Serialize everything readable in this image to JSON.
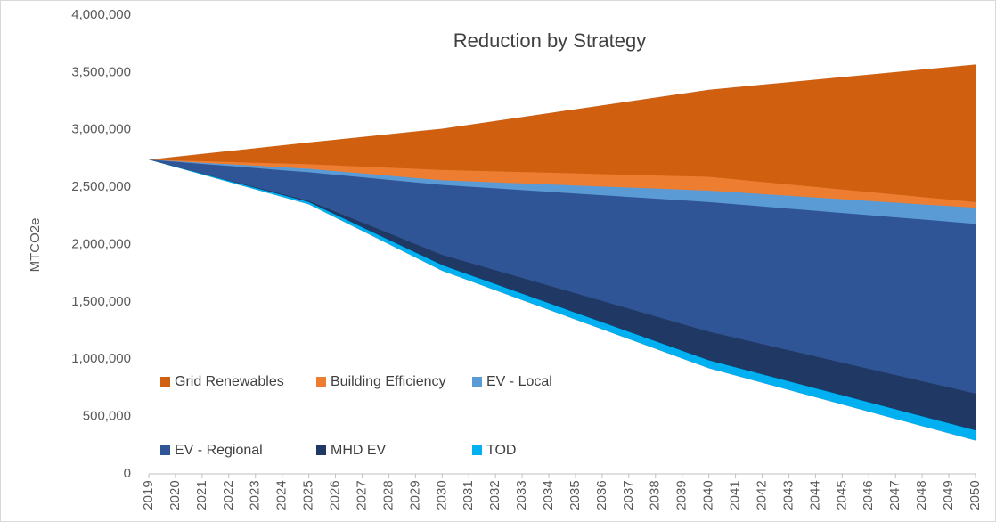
{
  "chart_data": {
    "type": "area",
    "title": "Reduction by Strategy",
    "y_label": "MTCO2e",
    "categories": [
      "2019",
      "2020",
      "2021",
      "2022",
      "2023",
      "2024",
      "2025",
      "2026",
      "2027",
      "2028",
      "2029",
      "2030",
      "2031",
      "2032",
      "2033",
      "2034",
      "2035",
      "2036",
      "2037",
      "2038",
      "2039",
      "2040",
      "2041",
      "2042",
      "2043",
      "2044",
      "2045",
      "2046",
      "2047",
      "2048",
      "2049",
      "2050"
    ],
    "ylim": [
      0,
      4000000
    ],
    "yticks": [
      0,
      {
        "value": 500000,
        "label": "500,000"
      },
      {
        "value": 1000000,
        "label": "1,000,000"
      },
      {
        "value": 1500000,
        "label": "1,500,000"
      },
      {
        "value": 2000000,
        "label": "2,000,000"
      },
      {
        "value": 2500000,
        "label": "2,500,000"
      },
      {
        "value": 3000000,
        "label": "3,000,000"
      },
      {
        "value": 3500000,
        "label": "3,500,000"
      },
      {
        "value": 4000000,
        "label": "4,000,000"
      }
    ],
    "legend": "lower left",
    "series": [
      {
        "name": "Grid Renewables",
        "color": "#d0600f",
        "values": [
          2740000,
          2765000,
          2790000,
          2815000,
          2840000,
          2865000,
          2890000,
          2914000,
          2938000,
          2962000,
          2986000,
          3010000,
          3044000,
          3078000,
          3112000,
          3146000,
          3180000,
          3214000,
          3248000,
          3282000,
          3316000,
          3350000,
          3372000,
          3394000,
          3416000,
          3438000,
          3460000,
          3482000,
          3504000,
          3526000,
          3548000,
          3570000
        ]
      },
      {
        "name": "Building Efficiency",
        "color": "#ed7d31",
        "values": [
          2740000,
          2733000,
          2727000,
          2720000,
          2713000,
          2707000,
          2700000,
          2690000,
          2680000,
          2670000,
          2660000,
          2650000,
          2644000,
          2638000,
          2632000,
          2626000,
          2620000,
          2614000,
          2608000,
          2602000,
          2596000,
          2590000,
          2568000,
          2546000,
          2524000,
          2502000,
          2480000,
          2458000,
          2436000,
          2414000,
          2392000,
          2370000
        ]
      },
      {
        "name": "EV - Local",
        "color": "#5b9bd5",
        "values": [
          2740000,
          2727000,
          2713000,
          2700000,
          2687000,
          2673000,
          2660000,
          2640000,
          2620000,
          2600000,
          2580000,
          2560000,
          2551000,
          2542000,
          2533000,
          2524000,
          2515000,
          2506000,
          2497000,
          2488000,
          2479000,
          2470000,
          2455000,
          2440000,
          2425000,
          2410000,
          2395000,
          2380000,
          2365000,
          2350000,
          2335000,
          2320000
        ]
      },
      {
        "name": "EV - Regional",
        "color": "#2f5597",
        "values": [
          2740000,
          2722000,
          2703000,
          2685000,
          2667000,
          2648000,
          2630000,
          2608000,
          2586000,
          2564000,
          2542000,
          2520000,
          2505000,
          2490000,
          2475000,
          2460000,
          2445000,
          2430000,
          2415000,
          2400000,
          2385000,
          2370000,
          2351000,
          2332000,
          2313000,
          2294000,
          2275000,
          2256000,
          2237000,
          2218000,
          2199000,
          2180000
        ]
      },
      {
        "name": "MHD EV",
        "color": "#203864",
        "values": [
          2740000,
          2680000,
          2620000,
          2560000,
          2500000,
          2440000,
          2380000,
          2286000,
          2192000,
          2098000,
          2004000,
          1910000,
          1843000,
          1776000,
          1709000,
          1642000,
          1575000,
          1508000,
          1441000,
          1374000,
          1307000,
          1240000,
          1186000,
          1132000,
          1078000,
          1024000,
          970000,
          916000,
          862000,
          808000,
          754000,
          700000
        ]
      },
      {
        "name": "TOD",
        "color": "#00b0f0",
        "values": [
          2740000,
          2678000,
          2617000,
          2555000,
          2493000,
          2432000,
          2370000,
          2260000,
          2150000,
          2040000,
          1930000,
          1820000,
          1737000,
          1654000,
          1571000,
          1488000,
          1405000,
          1322000,
          1239000,
          1156000,
          1073000,
          990000,
          929000,
          868000,
          807000,
          746000,
          685000,
          624000,
          563000,
          502000,
          441000,
          380000
        ]
      },
      {
        "color": "#ffffff",
        "values": [
          2740000,
          2675000,
          2610000,
          2545000,
          2480000,
          2415000,
          2350000,
          2234000,
          2118000,
          2002000,
          1886000,
          1770000,
          1685000,
          1600000,
          1515000,
          1430000,
          1345000,
          1260000,
          1175000,
          1090000,
          1005000,
          920000,
          857000,
          794000,
          731000,
          668000,
          605000,
          542000,
          479000,
          416000,
          353000,
          290000
        ]
      }
    ]
  }
}
